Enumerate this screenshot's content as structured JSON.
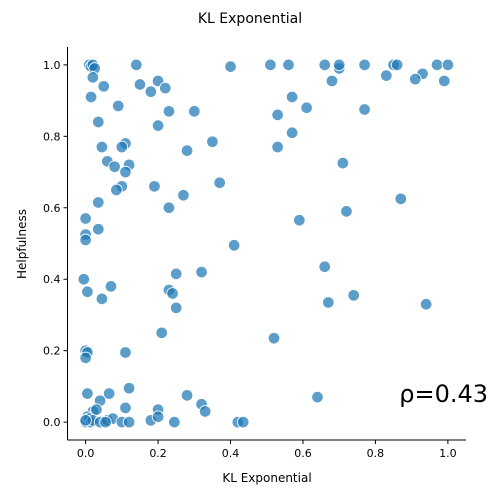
{
  "chart_data": {
    "type": "scatter",
    "title": "KL Exponential",
    "xlabel": "KL Exponential",
    "ylabel": "Helpfulness",
    "xlim": [
      -0.05,
      1.05
    ],
    "ylim": [
      -0.05,
      1.05
    ],
    "xticks": [
      "0.0",
      "0.2",
      "0.4",
      "0.6",
      "0.8",
      "1.0"
    ],
    "yticks": [
      "0.0",
      "0.2",
      "0.4",
      "0.6",
      "0.8",
      "1.0"
    ],
    "annotation": "ρ=0.43",
    "grid": false,
    "color": "#1f77b4",
    "points": [
      [
        0.01,
        1.0
      ],
      [
        0.015,
        0.995
      ],
      [
        0.02,
        1.0
      ],
      [
        0.025,
        0.99
      ],
      [
        0.02,
        0.965
      ],
      [
        0.015,
        0.91
      ],
      [
        0.05,
        0.94
      ],
      [
        0.09,
        0.885
      ],
      [
        0.14,
        1.0
      ],
      [
        0.15,
        0.945
      ],
      [
        0.18,
        0.925
      ],
      [
        0.2,
        0.955
      ],
      [
        0.22,
        0.935
      ],
      [
        0.4,
        0.995
      ],
      [
        0.51,
        1.0
      ],
      [
        0.56,
        1.0
      ],
      [
        0.66,
        1.0
      ],
      [
        0.7,
        0.99
      ],
      [
        0.7,
        1.0
      ],
      [
        0.77,
        1.0
      ],
      [
        0.85,
        1.0
      ],
      [
        0.86,
        1.0
      ],
      [
        0.97,
        1.0
      ],
      [
        1.0,
        1.0
      ],
      [
        0.83,
        0.97
      ],
      [
        0.93,
        0.975
      ],
      [
        0.91,
        0.96
      ],
      [
        0.99,
        0.955
      ],
      [
        0.68,
        0.955
      ],
      [
        0.57,
        0.91
      ],
      [
        0.61,
        0.88
      ],
      [
        0.53,
        0.86
      ],
      [
        0.77,
        0.875
      ],
      [
        0.23,
        0.87
      ],
      [
        0.3,
        0.87
      ],
      [
        0.2,
        0.83
      ],
      [
        0.035,
        0.84
      ],
      [
        0.11,
        0.78
      ],
      [
        0.1,
        0.77
      ],
      [
        0.045,
        0.77
      ],
      [
        0.06,
        0.73
      ],
      [
        0.08,
        0.715
      ],
      [
        0.12,
        0.72
      ],
      [
        0.11,
        0.7
      ],
      [
        0.35,
        0.785
      ],
      [
        0.28,
        0.76
      ],
      [
        0.53,
        0.77
      ],
      [
        0.57,
        0.81
      ],
      [
        0.71,
        0.725
      ],
      [
        0.1,
        0.66
      ],
      [
        0.085,
        0.65
      ],
      [
        0.19,
        0.66
      ],
      [
        0.27,
        0.635
      ],
      [
        0.37,
        0.67
      ],
      [
        0.035,
        0.615
      ],
      [
        0.23,
        0.6
      ],
      [
        0.0,
        0.57
      ],
      [
        0.59,
        0.565
      ],
      [
        0.72,
        0.59
      ],
      [
        0.87,
        0.625
      ],
      [
        0.0,
        0.525
      ],
      [
        0.0,
        0.51
      ],
      [
        0.035,
        0.54
      ],
      [
        0.41,
        0.495
      ],
      [
        0.25,
        0.415
      ],
      [
        0.32,
        0.42
      ],
      [
        0.66,
        0.435
      ],
      [
        -0.005,
        0.4
      ],
      [
        0.005,
        0.365
      ],
      [
        0.045,
        0.345
      ],
      [
        0.07,
        0.38
      ],
      [
        0.23,
        0.37
      ],
      [
        0.24,
        0.36
      ],
      [
        0.25,
        0.32
      ],
      [
        0.21,
        0.25
      ],
      [
        0.67,
        0.335
      ],
      [
        0.74,
        0.355
      ],
      [
        0.94,
        0.33
      ],
      [
        0.52,
        0.235
      ],
      [
        0.0,
        0.2
      ],
      [
        0.005,
        0.195
      ],
      [
        0.0,
        0.18
      ],
      [
        0.11,
        0.195
      ],
      [
        0.005,
        0.08
      ],
      [
        0.065,
        0.08
      ],
      [
        0.12,
        0.095
      ],
      [
        0.28,
        0.075
      ],
      [
        0.32,
        0.05
      ],
      [
        0.33,
        0.03
      ],
      [
        0.64,
        0.07
      ],
      [
        0.04,
        0.06
      ],
      [
        0.02,
        0.03
      ],
      [
        0.03,
        0.035
      ],
      [
        0.11,
        0.04
      ],
      [
        0.2,
        0.035
      ],
      [
        0.0,
        0.0
      ],
      [
        0.005,
        0.015
      ],
      [
        0.01,
        0.01
      ],
      [
        0.015,
        0.0
      ],
      [
        0.02,
        0.005
      ],
      [
        0.04,
        0.0
      ],
      [
        0.06,
        0.005
      ],
      [
        0.075,
        0.01
      ],
      [
        0.1,
        0.0
      ],
      [
        0.12,
        0.0
      ],
      [
        0.18,
        0.005
      ],
      [
        0.2,
        0.015
      ],
      [
        0.245,
        0.0
      ],
      [
        0.42,
        0.0
      ],
      [
        0.435,
        0.0
      ],
      [
        0.055,
        0.0
      ],
      [
        0.0,
        0.005
      ]
    ]
  }
}
